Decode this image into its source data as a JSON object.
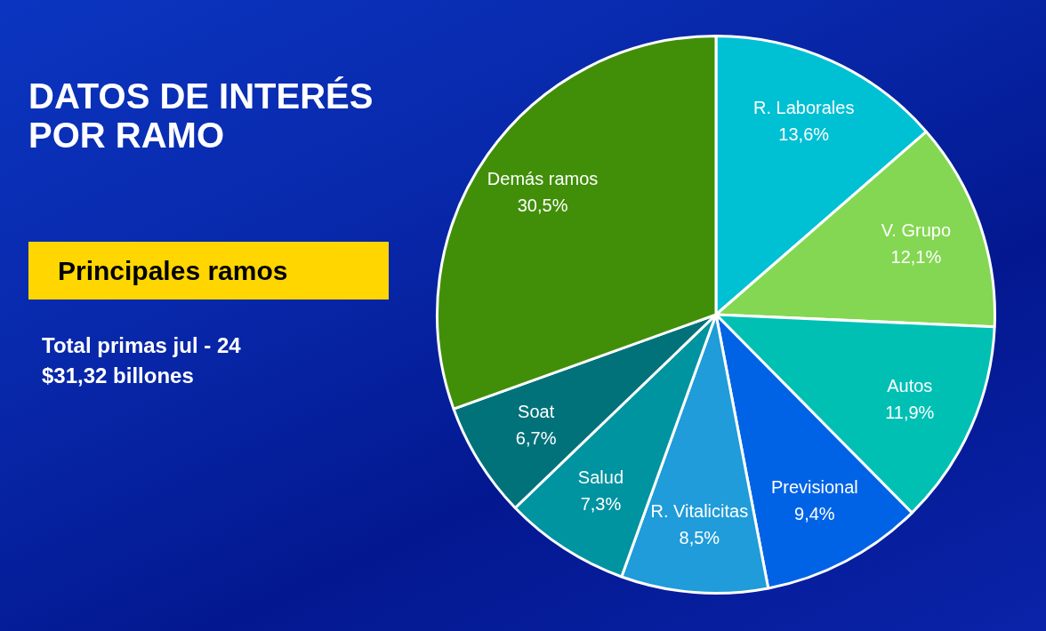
{
  "chart_data": {
    "type": "pie",
    "title": "DATOS DE INTERÉS POR RAMO",
    "subtitle": "Principales ramos",
    "annotations": [
      "Total primas jul - 24",
      "$31,32 billones"
    ],
    "categories": [
      "R. Laborales",
      "V. Grupo",
      "Autos",
      "Previsional",
      "R. Vitalicitas",
      "Salud",
      "Soat",
      "Demás ramos"
    ],
    "values": [
      13.6,
      12.1,
      11.9,
      9.4,
      8.5,
      7.3,
      6.7,
      30.5
    ],
    "colors": [
      "#00c0d4",
      "#84d752",
      "#00c0b4",
      "#0063e6",
      "#1f9cd9",
      "#0093a0",
      "#01727a",
      "#418f09"
    ],
    "value_labels": [
      "13,6%",
      "12,1%",
      "11,9%",
      "9,4%",
      "8,5%",
      "7,3%",
      "6,7%",
      "30,5%"
    ]
  }
}
